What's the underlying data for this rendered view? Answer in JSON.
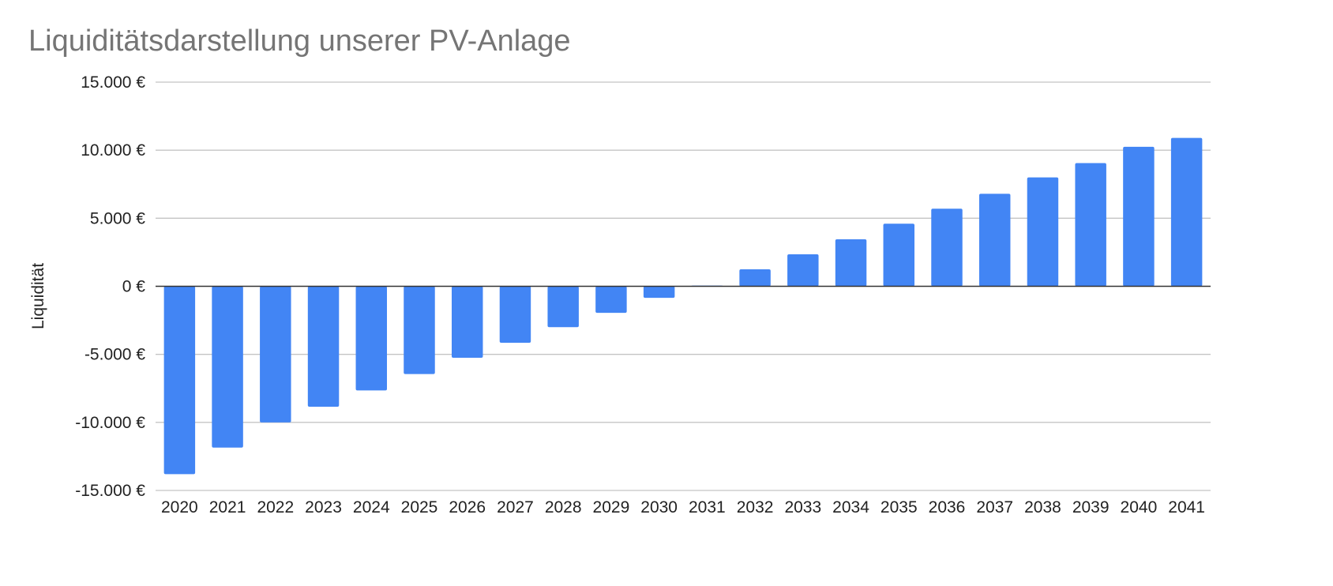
{
  "chart_data": {
    "type": "bar",
    "title": "Liquiditätsdarstellung unserer PV-Anlage",
    "xlabel": "",
    "ylabel": "Liquidität",
    "categories": [
      "2020",
      "2021",
      "2022",
      "2023",
      "2024",
      "2025",
      "2026",
      "2027",
      "2028",
      "2029",
      "2030",
      "2031",
      "2032",
      "2033",
      "2034",
      "2035",
      "2036",
      "2037",
      "2038",
      "2039",
      "2040",
      "2041"
    ],
    "values": [
      -13800,
      -11850,
      -10000,
      -8850,
      -7650,
      -6450,
      -5250,
      -4150,
      -3000,
      -1950,
      -850,
      50,
      1250,
      2350,
      3450,
      4600,
      5700,
      6800,
      8000,
      9050,
      10250,
      10900
    ],
    "ylim": [
      -15000,
      15000
    ],
    "yticks": [
      15000,
      10000,
      5000,
      0,
      -5000,
      -10000,
      -15000
    ],
    "ytick_labels": [
      "15.000 €",
      "10.000 €",
      "5.000 €",
      "0 €",
      "-5.000 €",
      "-10.000 €",
      "-15.000 €"
    ],
    "bar_color": "#4285F4",
    "grid": true,
    "legend": "none"
  }
}
